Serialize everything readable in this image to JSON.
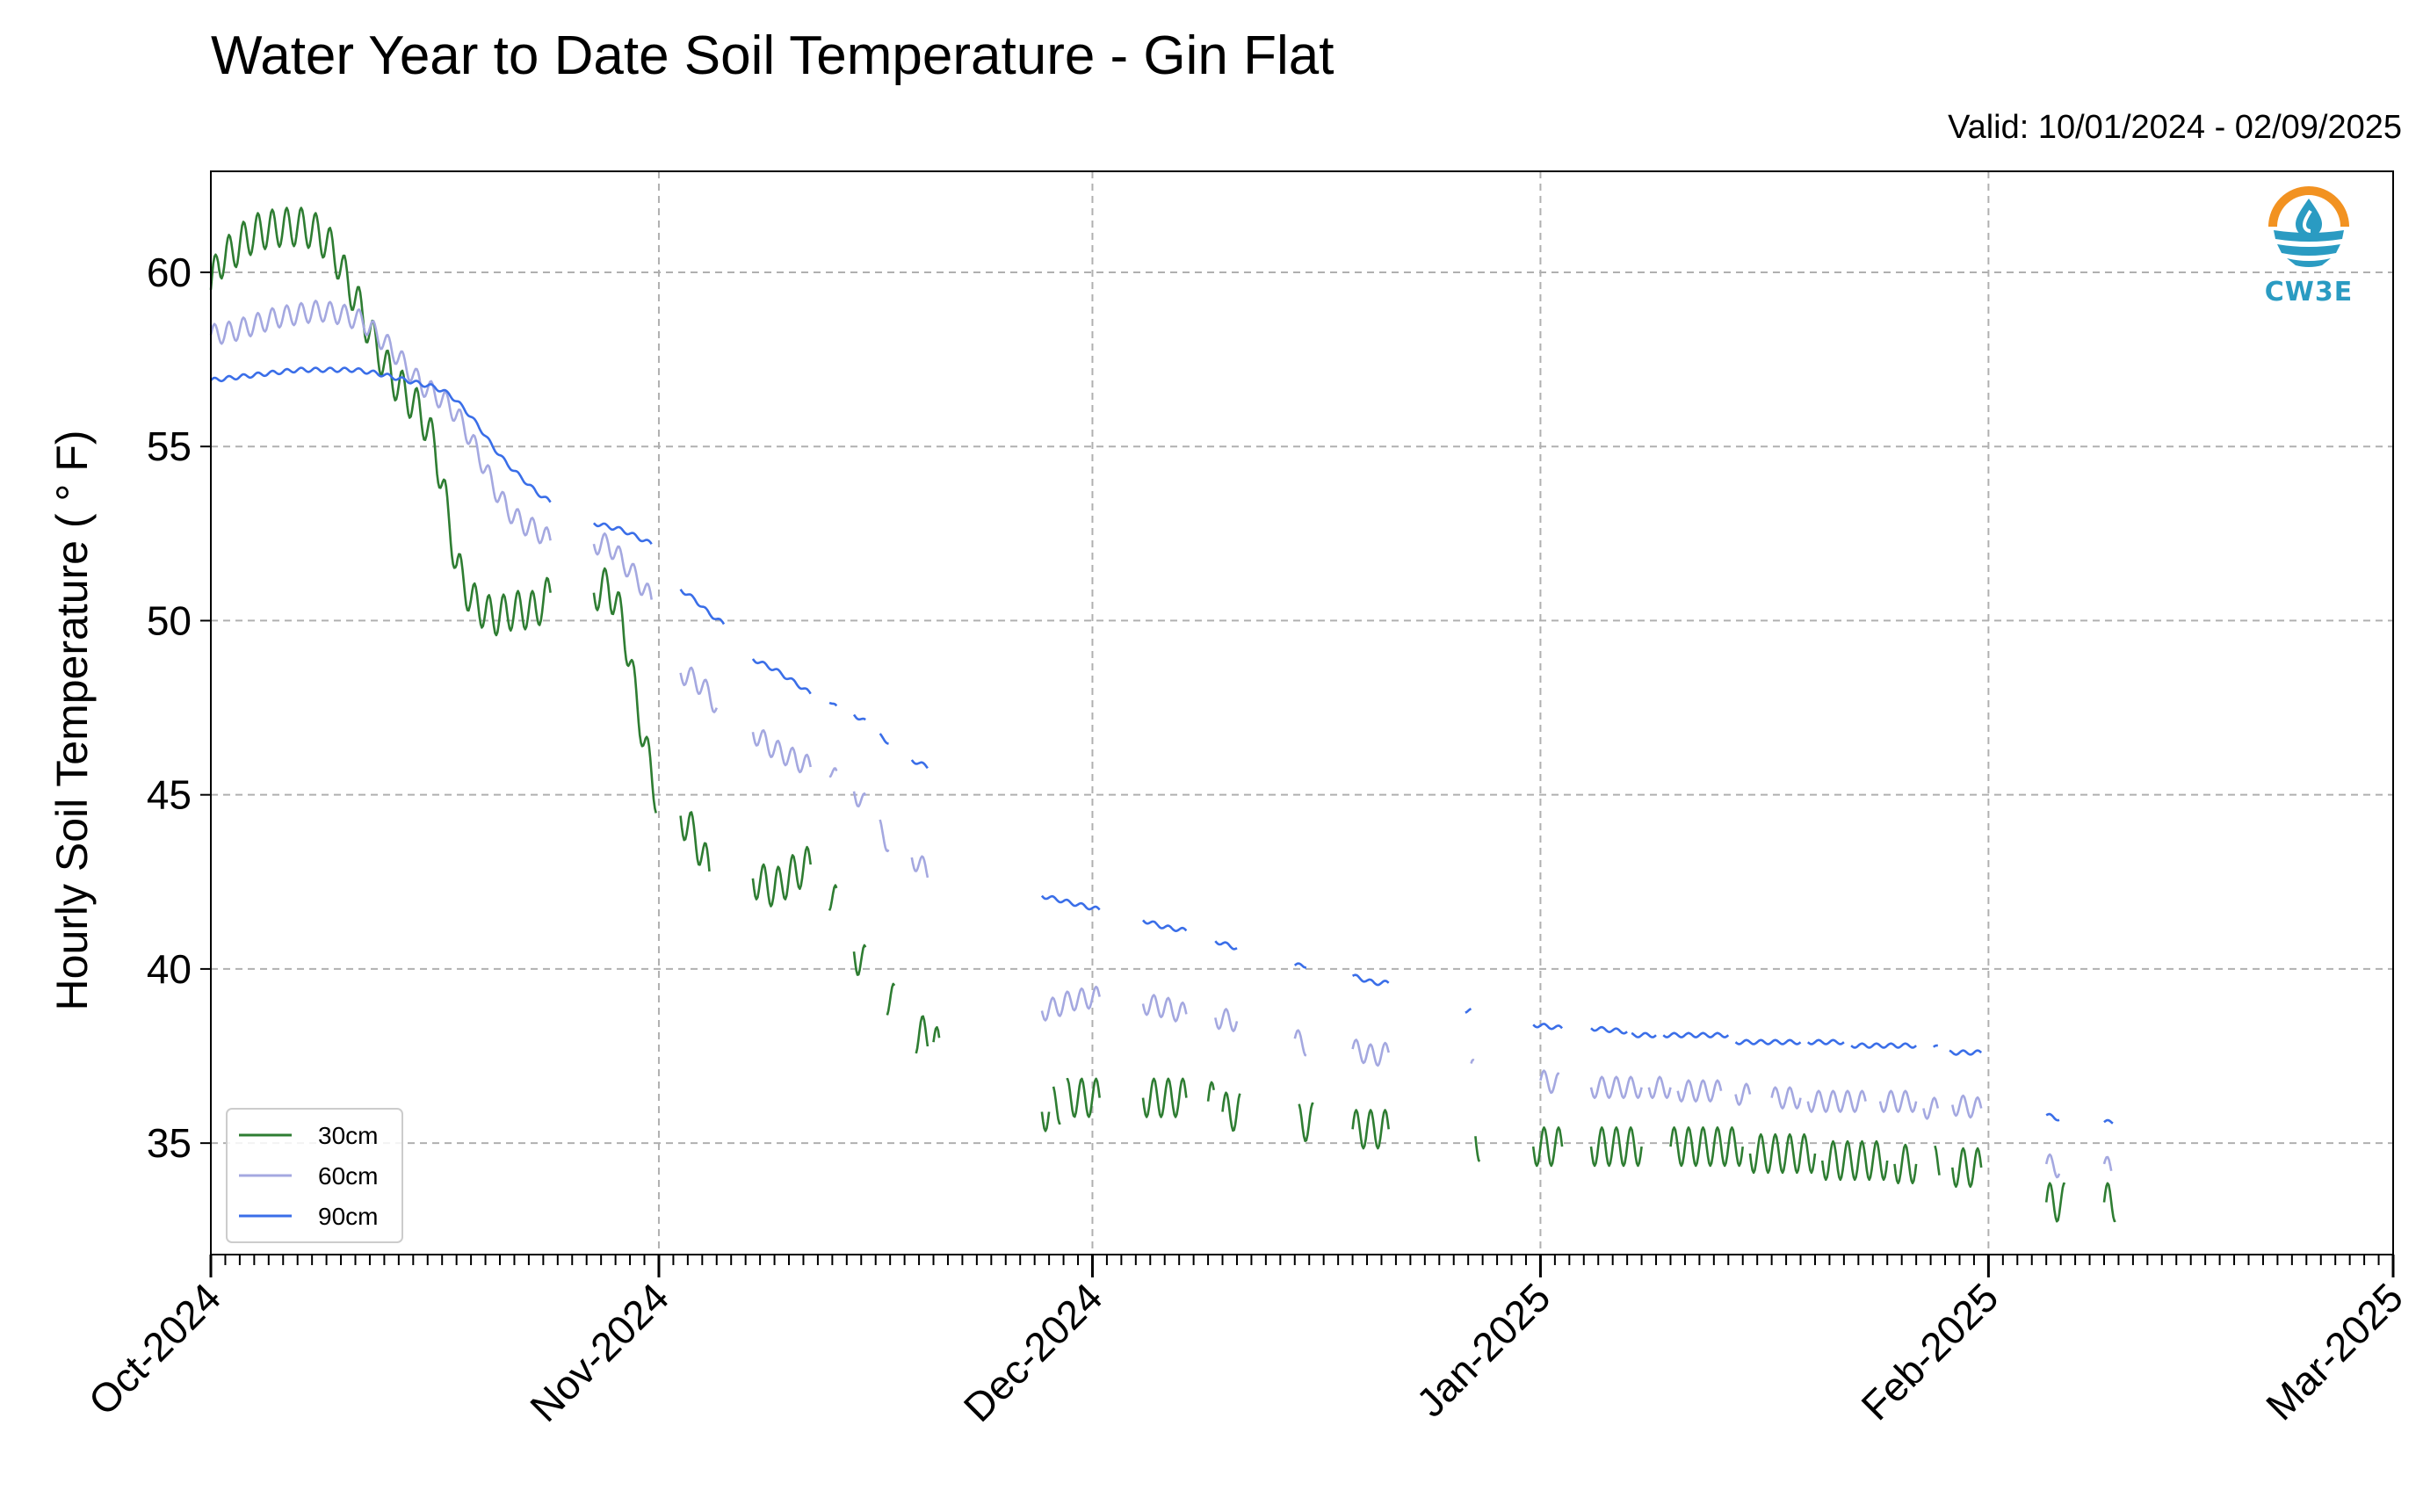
{
  "title": "Water Year to Date Soil Temperature - Gin Flat",
  "valid_text": "Valid: 10/01/2024 - 02/09/2025",
  "logo_text": "CW3E",
  "colors": {
    "s30": "#2e7d32",
    "s60": "#a4a8e0",
    "s90": "#3a6ee8",
    "logo_orange": "#f29221",
    "logo_blue": "#2a9bc2"
  },
  "chart_data": {
    "type": "line",
    "title": "Water Year to Date Soil Temperature - Gin Flat",
    "ylabel": "Hourly Soil Temperature ( ° F)",
    "xlabel": "",
    "x_ticks": [
      "Oct-2024",
      "Nov-2024",
      "Dec-2024",
      "Jan-2025",
      "Feb-2025",
      "Mar-2025"
    ],
    "x_tick_days": [
      0,
      31,
      61,
      92,
      123,
      151
    ],
    "xlim": [
      0,
      151
    ],
    "y_ticks": [
      35,
      40,
      45,
      50,
      55,
      60
    ],
    "ylim": [
      31.8,
      62.9
    ],
    "grid": true,
    "legend_position": "lower-left",
    "series": [
      {
        "name": "30cm",
        "color": "#2e7d32",
        "osc": 0.55,
        "segments": [
          [
            [
              0.0,
              59.5
            ],
            [
              0.5,
              60.3
            ],
            [
              1.5,
              60.6
            ],
            [
              2.5,
              61.0
            ],
            [
              3.5,
              61.2
            ],
            [
              5.0,
              61.3
            ],
            [
              6.5,
              61.3
            ],
            [
              7.5,
              61.1
            ],
            [
              8.5,
              60.6
            ],
            [
              9.5,
              59.7
            ],
            [
              10.5,
              58.8
            ],
            [
              11.5,
              57.8
            ],
            [
              12.5,
              57.0
            ],
            [
              13.5,
              56.5
            ],
            [
              14.5,
              56.0
            ],
            [
              15.5,
              55.0
            ],
            [
              16.2,
              53.5
            ],
            [
              17.0,
              51.6
            ],
            [
              18.0,
              50.6
            ],
            [
              19.5,
              50.1
            ],
            [
              21.0,
              50.3
            ],
            [
              22.5,
              50.3
            ],
            [
              23.5,
              50.8
            ]
          ],
          [
            [
              26.5,
              50.8
            ],
            [
              27.5,
              51.0
            ],
            [
              28.5,
              50.0
            ],
            [
              29.2,
              48.3
            ],
            [
              30.0,
              46.5
            ],
            [
              30.8,
              45.0
            ]
          ],
          [
            [
              32.5,
              44.4
            ],
            [
              33.5,
              43.8
            ],
            [
              34.5,
              42.8
            ]
          ],
          [
            [
              37.5,
              42.6
            ],
            [
              39.0,
              42.3
            ],
            [
              40.5,
              42.8
            ],
            [
              41.5,
              43.0
            ]
          ],
          [
            [
              42.8,
              42.2
            ],
            [
              43.3,
              41.8
            ]
          ],
          [
            [
              44.5,
              40.5
            ],
            [
              45.3,
              40.1
            ]
          ],
          [
            [
              46.8,
              39.2
            ],
            [
              47.3,
              39.0
            ]
          ],
          [
            [
              48.8,
              38.1
            ],
            [
              49.6,
              38.1
            ]
          ],
          [
            [
              50.0,
              37.9
            ],
            [
              50.4,
              37.7
            ]
          ],
          [
            [
              57.5,
              35.9
            ],
            [
              58.0,
              35.9
            ]
          ],
          [
            [
              58.3,
              36.1
            ],
            [
              58.8,
              36.1
            ]
          ],
          [
            [
              59.2,
              36.3
            ],
            [
              61.5,
              36.3
            ]
          ],
          [
            [
              64.5,
              36.3
            ],
            [
              67.5,
              36.3
            ]
          ],
          [
            [
              69.0,
              36.2
            ],
            [
              69.4,
              36.2
            ]
          ],
          [
            [
              70.0,
              35.9
            ],
            [
              71.2,
              35.9
            ]
          ],
          [
            [
              75.3,
              35.6
            ],
            [
              76.3,
              35.6
            ]
          ],
          [
            [
              79.0,
              35.4
            ],
            [
              81.5,
              35.4
            ]
          ],
          [
            [
              87.5,
              35.2
            ],
            [
              87.8,
              35.0
            ]
          ],
          [
            [
              91.5,
              34.9
            ],
            [
              93.5,
              34.9
            ]
          ],
          [
            [
              95.5,
              34.9
            ],
            [
              99.0,
              34.9
            ]
          ],
          [
            [
              101.0,
              34.9
            ],
            [
              106.0,
              34.9
            ]
          ],
          [
            [
              106.5,
              34.7
            ],
            [
              111.0,
              34.7
            ]
          ],
          [
            [
              111.5,
              34.5
            ],
            [
              116.0,
              34.5
            ]
          ],
          [
            [
              116.5,
              34.4
            ],
            [
              118.0,
              34.4
            ]
          ],
          [
            [
              119.3,
              34.4
            ],
            [
              119.6,
              34.4
            ]
          ],
          [
            [
              120.5,
              34.3
            ],
            [
              122.5,
              34.3
            ]
          ],
          [
            [
              127.0,
              33.3
            ],
            [
              128.3,
              33.3
            ]
          ],
          [
            [
              131.0,
              33.3
            ],
            [
              131.8,
              33.3
            ]
          ]
        ]
      },
      {
        "name": "60cm",
        "color": "#a4a8e0",
        "osc": 0.3,
        "segments": [
          [
            [
              0.0,
              58.2
            ],
            [
              1.5,
              58.3
            ],
            [
              3.0,
              58.5
            ],
            [
              4.5,
              58.7
            ],
            [
              6.0,
              58.8
            ],
            [
              7.5,
              58.9
            ],
            [
              9.0,
              58.8
            ],
            [
              10.5,
              58.6
            ],
            [
              11.5,
              58.2
            ],
            [
              12.5,
              57.8
            ],
            [
              13.5,
              57.3
            ],
            [
              14.5,
              56.8
            ],
            [
              15.5,
              56.5
            ],
            [
              16.5,
              56.2
            ],
            [
              17.5,
              55.6
            ],
            [
              18.5,
              54.8
            ],
            [
              19.5,
              53.9
            ],
            [
              20.5,
              53.2
            ],
            [
              21.5,
              52.8
            ],
            [
              22.5,
              52.6
            ],
            [
              23.5,
              52.3
            ]
          ],
          [
            [
              26.5,
              52.2
            ],
            [
              27.5,
              52.2
            ],
            [
              28.5,
              51.7
            ],
            [
              29.5,
              51.2
            ],
            [
              30.5,
              50.6
            ]
          ],
          [
            [
              32.5,
              48.5
            ],
            [
              33.5,
              48.3
            ],
            [
              34.5,
              47.9
            ],
            [
              35.0,
              47.5
            ]
          ],
          [
            [
              37.5,
              46.8
            ],
            [
              39.0,
              46.3
            ],
            [
              40.5,
              46.0
            ],
            [
              41.5,
              45.8
            ]
          ],
          [
            [
              42.8,
              45.8
            ],
            [
              43.3,
              45.4
            ]
          ],
          [
            [
              44.5,
              45.1
            ],
            [
              45.3,
              44.7
            ]
          ],
          [
            [
              46.3,
              44.0
            ],
            [
              46.9,
              43.6
            ]
          ],
          [
            [
              48.5,
              43.2
            ],
            [
              49.6,
              42.8
            ]
          ],
          [
            [
              57.5,
              38.8
            ],
            [
              58.5,
              38.9
            ],
            [
              59.5,
              39.1
            ],
            [
              61.5,
              39.2
            ]
          ],
          [
            [
              64.5,
              39.0
            ],
            [
              66.0,
              38.9
            ],
            [
              67.5,
              38.7
            ]
          ],
          [
            [
              69.5,
              38.6
            ],
            [
              71.0,
              38.5
            ]
          ],
          [
            [
              75.0,
              38.0
            ],
            [
              75.8,
              37.8
            ]
          ],
          [
            [
              79.0,
              37.7
            ],
            [
              80.5,
              37.5
            ],
            [
              81.5,
              37.6
            ]
          ],
          [
            [
              87.2,
              37.0
            ],
            [
              87.4,
              37.2
            ]
          ],
          [
            [
              92.0,
              36.8
            ],
            [
              93.3,
              36.7
            ]
          ],
          [
            [
              95.5,
              36.6
            ],
            [
              99.0,
              36.6
            ]
          ],
          [
            [
              99.5,
              36.6
            ],
            [
              101.0,
              36.6
            ]
          ],
          [
            [
              101.5,
              36.5
            ],
            [
              104.5,
              36.5
            ]
          ],
          [
            [
              105.5,
              36.4
            ],
            [
              106.5,
              36.4
            ]
          ],
          [
            [
              108.0,
              36.3
            ],
            [
              110.0,
              36.3
            ]
          ],
          [
            [
              110.5,
              36.2
            ],
            [
              114.5,
              36.2
            ]
          ],
          [
            [
              115.5,
              36.2
            ],
            [
              118.0,
              36.2
            ]
          ],
          [
            [
              118.5,
              36.0
            ],
            [
              119.5,
              36.0
            ]
          ],
          [
            [
              120.5,
              36.1
            ],
            [
              122.5,
              36.0
            ]
          ],
          [
            [
              127.0,
              34.4
            ],
            [
              127.9,
              34.3
            ]
          ],
          [
            [
              131.0,
              34.4
            ],
            [
              131.5,
              34.2
            ]
          ]
        ]
      },
      {
        "name": "90cm",
        "color": "#3a6ee8",
        "osc": 0.06,
        "segments": [
          [
            [
              0.0,
              56.9
            ],
            [
              2.0,
              57.0
            ],
            [
              4.0,
              57.1
            ],
            [
              6.0,
              57.2
            ],
            [
              8.0,
              57.2
            ],
            [
              10.0,
              57.2
            ],
            [
              11.5,
              57.1
            ],
            [
              12.5,
              57.0
            ],
            [
              13.5,
              56.9
            ],
            [
              14.5,
              56.8
            ],
            [
              15.5,
              56.7
            ],
            [
              16.5,
              56.5
            ],
            [
              17.5,
              56.1
            ],
            [
              18.5,
              55.6
            ],
            [
              19.5,
              55.0
            ],
            [
              20.5,
              54.5
            ],
            [
              21.5,
              54.1
            ],
            [
              22.5,
              53.7
            ],
            [
              23.5,
              53.4
            ]
          ],
          [
            [
              26.5,
              52.8
            ],
            [
              27.5,
              52.7
            ],
            [
              28.5,
              52.6
            ],
            [
              29.5,
              52.4
            ],
            [
              30.5,
              52.2
            ]
          ],
          [
            [
              32.5,
              50.9
            ],
            [
              33.5,
              50.6
            ],
            [
              34.5,
              50.2
            ],
            [
              35.5,
              49.9
            ]
          ],
          [
            [
              37.5,
              48.9
            ],
            [
              39.0,
              48.6
            ],
            [
              40.5,
              48.2
            ],
            [
              41.5,
              47.9
            ]
          ],
          [
            [
              42.8,
              47.7
            ],
            [
              43.3,
              47.5
            ]
          ],
          [
            [
              44.5,
              47.3
            ],
            [
              45.3,
              47.1
            ]
          ],
          [
            [
              46.3,
              46.7
            ],
            [
              46.9,
              46.5
            ]
          ],
          [
            [
              48.5,
              46.0
            ],
            [
              49.6,
              45.8
            ]
          ],
          [
            [
              57.5,
              42.1
            ],
            [
              58.5,
              42.0
            ],
            [
              59.5,
              41.9
            ],
            [
              61.5,
              41.7
            ]
          ],
          [
            [
              64.5,
              41.4
            ],
            [
              66.0,
              41.2
            ],
            [
              67.5,
              41.1
            ]
          ],
          [
            [
              69.5,
              40.8
            ],
            [
              71.0,
              40.6
            ]
          ],
          [
            [
              75.0,
              40.1
            ],
            [
              75.8,
              40.1
            ]
          ],
          [
            [
              79.0,
              39.8
            ],
            [
              80.5,
              39.6
            ],
            [
              81.5,
              39.6
            ]
          ],
          [
            [
              86.8,
              38.8
            ],
            [
              87.2,
              38.8
            ]
          ],
          [
            [
              91.5,
              38.4
            ],
            [
              93.5,
              38.3
            ]
          ],
          [
            [
              95.5,
              38.3
            ],
            [
              98.0,
              38.2
            ]
          ],
          [
            [
              98.3,
              38.1
            ],
            [
              100.0,
              38.1
            ]
          ],
          [
            [
              100.5,
              38.1
            ],
            [
              105.0,
              38.1
            ]
          ],
          [
            [
              105.5,
              37.9
            ],
            [
              110.0,
              37.9
            ]
          ],
          [
            [
              110.5,
              37.9
            ],
            [
              113.0,
              37.9
            ]
          ],
          [
            [
              113.5,
              37.8
            ],
            [
              118.0,
              37.8
            ]
          ],
          [
            [
              119.2,
              37.7
            ],
            [
              119.5,
              37.8
            ]
          ],
          [
            [
              120.3,
              37.6
            ],
            [
              122.5,
              37.6
            ]
          ],
          [
            [
              127.0,
              35.8
            ],
            [
              127.9,
              35.7
            ]
          ],
          [
            [
              131.0,
              35.6
            ],
            [
              131.6,
              35.6
            ]
          ]
        ]
      }
    ]
  }
}
